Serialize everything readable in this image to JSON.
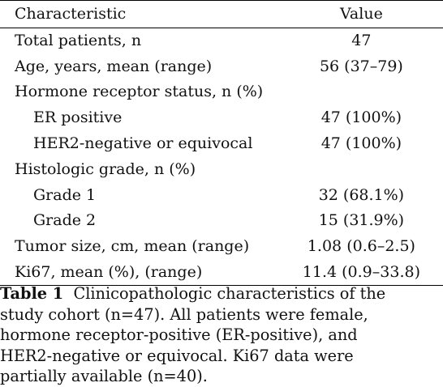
{
  "table": {
    "headers": {
      "characteristic": "Characteristic",
      "value": "Value"
    },
    "rows": [
      {
        "label": "Total patients, n",
        "value": "47",
        "indent": false
      },
      {
        "label": "Age, years, mean (range)",
        "value": "56 (37–79)",
        "indent": false
      },
      {
        "label": "Hormone receptor status, n (%)",
        "value": "",
        "indent": false
      },
      {
        "label": "ER positive",
        "value": "47 (100%)",
        "indent": true
      },
      {
        "label": "HER2-negative or equivocal",
        "value": "47 (100%)",
        "indent": true
      },
      {
        "label": "Histologic grade, n (%)",
        "value": "",
        "indent": false
      },
      {
        "label": "Grade 1",
        "value": "32 (68.1%)",
        "indent": true
      },
      {
        "label": "Grade 2",
        "value": "15 (31.9%)",
        "indent": true
      },
      {
        "label": "Tumor size, cm, mean (range)",
        "value": "1.08 (0.6–2.5)",
        "indent": false
      },
      {
        "label": "Ki67, mean (%), (range)",
        "value": "11.4 (0.9–33.8)",
        "indent": false
      }
    ]
  },
  "caption": {
    "label": "Table 1",
    "lines": [
      "Clinicopathologic characteristics of the",
      "study cohort (n=47). All patients were female,",
      "hormone receptor-positive (ER-positive), and",
      "HER2-negative or equivocal. Ki67 data were",
      "partially available (n=40)."
    ]
  }
}
